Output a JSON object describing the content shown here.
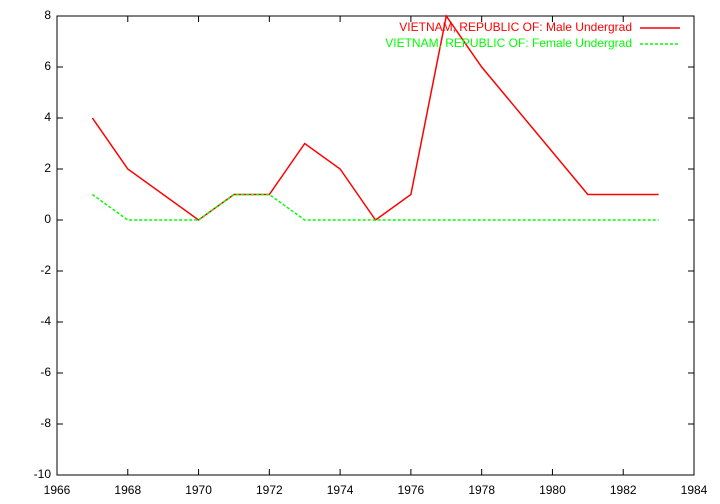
{
  "chart_data": {
    "type": "line",
    "x": [
      1967,
      1968,
      1970,
      1971,
      1972,
      1973,
      1974,
      1975,
      1976,
      1977,
      1978,
      1981,
      1982,
      1983
    ],
    "series": [
      {
        "name": "VIETNAM, REPUBLIC OF: Male Undergrad",
        "color": "#ff0000",
        "dash": false,
        "values": [
          4,
          2,
          0,
          1,
          1,
          3,
          2,
          0,
          1,
          8,
          6,
          1,
          1,
          1
        ]
      },
      {
        "name": "VIETNAM, REPUBLIC OF: Female Undergrad",
        "color": "#00ff00",
        "dash": true,
        "values": [
          1,
          0,
          0,
          1,
          1,
          0,
          0,
          0,
          0,
          0,
          0,
          0,
          0,
          0
        ]
      }
    ],
    "xlim": [
      1966,
      1984
    ],
    "xticks": [
      1966,
      1968,
      1970,
      1972,
      1974,
      1976,
      1978,
      1980,
      1982,
      1984
    ],
    "ylim": [
      -10,
      8
    ],
    "yticks": [
      -10,
      -8,
      -6,
      -4,
      -2,
      0,
      2,
      4,
      6,
      8
    ],
    "legend": "top-right"
  }
}
